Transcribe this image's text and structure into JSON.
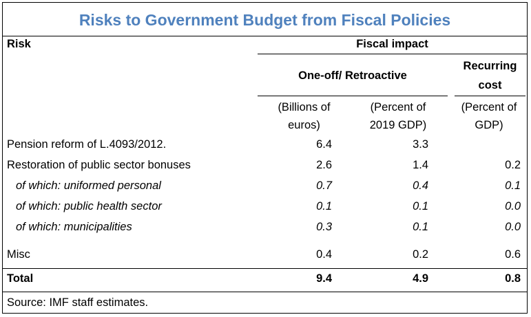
{
  "title": "Risks to Government Budget from Fiscal Policies",
  "header": {
    "risk": "Risk",
    "fiscal_impact": "Fiscal impact",
    "one_off": "One-off/ Retroactive",
    "recurring_line1": "Recurring",
    "recurring_line2": "cost",
    "unit1_line1": "(Billions of",
    "unit1_line2": "euros)",
    "unit2_line1": "(Percent of",
    "unit2_line2": "2019 GDP)",
    "unit3_line1": "(Percent of",
    "unit3_line2": "GDP)"
  },
  "rows": [
    {
      "label": "Pension reform of L.4093/2012.",
      "v1": "6.4",
      "v2": "3.3",
      "v3": ""
    },
    {
      "label": "Restoration of public sector bonuses",
      "v1": "2.6",
      "v2": "1.4",
      "v3": "0.2"
    },
    {
      "label": "of which: uniformed personal",
      "v1": "0.7",
      "v2": "0.4",
      "v3": "0.1"
    },
    {
      "label": "of which: public health sector",
      "v1": "0.1",
      "v2": "0.1",
      "v3": "0.0"
    },
    {
      "label": "of which: municipalities",
      "v1": "0.3",
      "v2": "0.1",
      "v3": "0.0"
    },
    {
      "label": "Misc",
      "v1": "0.4",
      "v2": "0.2",
      "v3": "0.6"
    },
    {
      "label": "Total",
      "v1": "9.4",
      "v2": "4.9",
      "v3": "0.8"
    }
  ],
  "source": "Source: IMF staff estimates."
}
